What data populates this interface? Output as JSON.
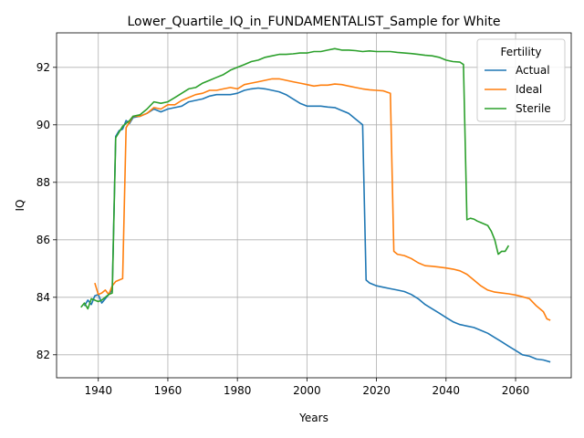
{
  "chart_data": {
    "type": "line",
    "title": "Lower_Quartile_IQ_in_FUNDAMENTALIST_Sample for White",
    "xlabel": "Years",
    "ylabel": "IQ",
    "xlim": [
      1928,
      2076
    ],
    "ylim": [
      81.2,
      93.2
    ],
    "xticks": [
      1940,
      1960,
      1980,
      2000,
      2020,
      2040,
      2060
    ],
    "yticks": [
      82,
      84,
      86,
      88,
      90,
      92
    ],
    "grid": true,
    "legend": {
      "title": "Fertility",
      "placement": "top-right"
    },
    "series": [
      {
        "name": "Actual",
        "color": "#1f77b4",
        "points": [
          [
            1936,
            83.7
          ],
          [
            1937,
            83.9
          ],
          [
            1938,
            83.75
          ],
          [
            1939,
            84.05
          ],
          [
            1940,
            84.1
          ],
          [
            1941,
            83.8
          ],
          [
            1942,
            83.95
          ],
          [
            1943,
            84.1
          ],
          [
            1944,
            84.25
          ],
          [
            1945,
            89.6
          ],
          [
            1946,
            89.8
          ],
          [
            1947,
            89.85
          ],
          [
            1948,
            90.15
          ],
          [
            1949,
            90.05
          ],
          [
            1950,
            90.25
          ],
          [
            1952,
            90.3
          ],
          [
            1954,
            90.4
          ],
          [
            1956,
            90.55
          ],
          [
            1958,
            90.45
          ],
          [
            1960,
            90.55
          ],
          [
            1962,
            90.6
          ],
          [
            1964,
            90.65
          ],
          [
            1966,
            90.8
          ],
          [
            1968,
            90.85
          ],
          [
            1970,
            90.9
          ],
          [
            1972,
            91.0
          ],
          [
            1974,
            91.05
          ],
          [
            1976,
            91.05
          ],
          [
            1978,
            91.05
          ],
          [
            1980,
            91.1
          ],
          [
            1982,
            91.2
          ],
          [
            1984,
            91.25
          ],
          [
            1986,
            91.28
          ],
          [
            1988,
            91.25
          ],
          [
            1990,
            91.2
          ],
          [
            1992,
            91.15
          ],
          [
            1994,
            91.05
          ],
          [
            1996,
            90.9
          ],
          [
            1998,
            90.75
          ],
          [
            2000,
            90.65
          ],
          [
            2002,
            90.65
          ],
          [
            2004,
            90.65
          ],
          [
            2006,
            90.62
          ],
          [
            2008,
            90.6
          ],
          [
            2010,
            90.5
          ],
          [
            2012,
            90.4
          ],
          [
            2014,
            90.2
          ],
          [
            2016,
            90.0
          ],
          [
            2017,
            84.6
          ],
          [
            2018,
            84.5
          ],
          [
            2020,
            84.4
          ],
          [
            2022,
            84.35
          ],
          [
            2024,
            84.3
          ],
          [
            2026,
            84.25
          ],
          [
            2028,
            84.2
          ],
          [
            2030,
            84.1
          ],
          [
            2032,
            83.95
          ],
          [
            2034,
            83.75
          ],
          [
            2036,
            83.6
          ],
          [
            2038,
            83.45
          ],
          [
            2040,
            83.3
          ],
          [
            2042,
            83.15
          ],
          [
            2044,
            83.05
          ],
          [
            2046,
            83.0
          ],
          [
            2048,
            82.95
          ],
          [
            2050,
            82.85
          ],
          [
            2052,
            82.75
          ],
          [
            2054,
            82.6
          ],
          [
            2056,
            82.45
          ],
          [
            2058,
            82.3
          ],
          [
            2060,
            82.15
          ],
          [
            2062,
            82.0
          ],
          [
            2064,
            81.95
          ],
          [
            2066,
            81.85
          ],
          [
            2068,
            81.82
          ],
          [
            2070,
            81.75
          ]
        ]
      },
      {
        "name": "Ideal",
        "color": "#ff7f0e",
        "points": [
          [
            1939,
            84.5
          ],
          [
            1940,
            84.1
          ],
          [
            1941,
            84.15
          ],
          [
            1942,
            84.25
          ],
          [
            1943,
            84.1
          ],
          [
            1944,
            84.4
          ],
          [
            1945,
            84.55
          ],
          [
            1946,
            84.6
          ],
          [
            1947,
            84.65
          ],
          [
            1948,
            89.9
          ],
          [
            1949,
            90.1
          ],
          [
            1950,
            90.3
          ],
          [
            1952,
            90.3
          ],
          [
            1954,
            90.4
          ],
          [
            1956,
            90.6
          ],
          [
            1958,
            90.55
          ],
          [
            1960,
            90.7
          ],
          [
            1962,
            90.7
          ],
          [
            1964,
            90.85
          ],
          [
            1966,
            90.95
          ],
          [
            1968,
            91.05
          ],
          [
            1970,
            91.1
          ],
          [
            1972,
            91.2
          ],
          [
            1974,
            91.2
          ],
          [
            1976,
            91.25
          ],
          [
            1978,
            91.3
          ],
          [
            1980,
            91.25
          ],
          [
            1982,
            91.4
          ],
          [
            1984,
            91.45
          ],
          [
            1986,
            91.5
          ],
          [
            1988,
            91.55
          ],
          [
            1990,
            91.6
          ],
          [
            1992,
            91.6
          ],
          [
            1994,
            91.55
          ],
          [
            1996,
            91.5
          ],
          [
            1998,
            91.45
          ],
          [
            2000,
            91.4
          ],
          [
            2002,
            91.35
          ],
          [
            2004,
            91.38
          ],
          [
            2006,
            91.38
          ],
          [
            2008,
            91.42
          ],
          [
            2010,
            91.4
          ],
          [
            2012,
            91.35
          ],
          [
            2014,
            91.3
          ],
          [
            2016,
            91.25
          ],
          [
            2018,
            91.22
          ],
          [
            2020,
            91.2
          ],
          [
            2022,
            91.18
          ],
          [
            2024,
            91.1
          ],
          [
            2025,
            85.6
          ],
          [
            2026,
            85.5
          ],
          [
            2028,
            85.45
          ],
          [
            2030,
            85.35
          ],
          [
            2032,
            85.2
          ],
          [
            2034,
            85.1
          ],
          [
            2036,
            85.08
          ],
          [
            2038,
            85.05
          ],
          [
            2040,
            85.02
          ],
          [
            2042,
            84.98
          ],
          [
            2044,
            84.92
          ],
          [
            2046,
            84.8
          ],
          [
            2048,
            84.6
          ],
          [
            2050,
            84.4
          ],
          [
            2052,
            84.25
          ],
          [
            2054,
            84.18
          ],
          [
            2056,
            84.15
          ],
          [
            2058,
            84.12
          ],
          [
            2060,
            84.08
          ],
          [
            2062,
            84.02
          ],
          [
            2064,
            83.95
          ],
          [
            2066,
            83.7
          ],
          [
            2068,
            83.5
          ],
          [
            2069,
            83.25
          ],
          [
            2070,
            83.2
          ]
        ]
      },
      {
        "name": "Sterile",
        "color": "#2ca02c",
        "points": [
          [
            1935,
            83.65
          ],
          [
            1936,
            83.8
          ],
          [
            1937,
            83.6
          ],
          [
            1938,
            83.95
          ],
          [
            1940,
            83.85
          ],
          [
            1941,
            83.9
          ],
          [
            1942,
            84.0
          ],
          [
            1943,
            84.1
          ],
          [
            1944,
            84.15
          ],
          [
            1945,
            89.55
          ],
          [
            1946,
            89.75
          ],
          [
            1947,
            89.95
          ],
          [
            1948,
            90.05
          ],
          [
            1949,
            90.15
          ],
          [
            1950,
            90.3
          ],
          [
            1952,
            90.35
          ],
          [
            1954,
            90.55
          ],
          [
            1956,
            90.8
          ],
          [
            1958,
            90.75
          ],
          [
            1960,
            90.8
          ],
          [
            1962,
            90.95
          ],
          [
            1964,
            91.1
          ],
          [
            1966,
            91.25
          ],
          [
            1968,
            91.3
          ],
          [
            1970,
            91.45
          ],
          [
            1972,
            91.55
          ],
          [
            1974,
            91.65
          ],
          [
            1976,
            91.75
          ],
          [
            1978,
            91.9
          ],
          [
            1980,
            92.0
          ],
          [
            1982,
            92.1
          ],
          [
            1984,
            92.2
          ],
          [
            1986,
            92.25
          ],
          [
            1988,
            92.35
          ],
          [
            1990,
            92.4
          ],
          [
            1992,
            92.45
          ],
          [
            1994,
            92.45
          ],
          [
            1996,
            92.47
          ],
          [
            1998,
            92.5
          ],
          [
            2000,
            92.5
          ],
          [
            2002,
            92.55
          ],
          [
            2004,
            92.55
          ],
          [
            2006,
            92.6
          ],
          [
            2008,
            92.65
          ],
          [
            2010,
            92.6
          ],
          [
            2012,
            92.6
          ],
          [
            2014,
            92.58
          ],
          [
            2016,
            92.55
          ],
          [
            2018,
            92.57
          ],
          [
            2020,
            92.55
          ],
          [
            2022,
            92.55
          ],
          [
            2024,
            92.55
          ],
          [
            2026,
            92.52
          ],
          [
            2028,
            92.5
          ],
          [
            2030,
            92.48
          ],
          [
            2032,
            92.45
          ],
          [
            2034,
            92.42
          ],
          [
            2036,
            92.4
          ],
          [
            2038,
            92.35
          ],
          [
            2040,
            92.25
          ],
          [
            2042,
            92.2
          ],
          [
            2044,
            92.18
          ],
          [
            2045,
            92.1
          ],
          [
            2046,
            86.7
          ],
          [
            2047,
            86.75
          ],
          [
            2048,
            86.72
          ],
          [
            2049,
            86.65
          ],
          [
            2050,
            86.6
          ],
          [
            2052,
            86.5
          ],
          [
            2053,
            86.3
          ],
          [
            2054,
            86.0
          ],
          [
            2055,
            85.5
          ],
          [
            2056,
            85.6
          ],
          [
            2057,
            85.6
          ],
          [
            2058,
            85.8
          ]
        ]
      }
    ]
  }
}
